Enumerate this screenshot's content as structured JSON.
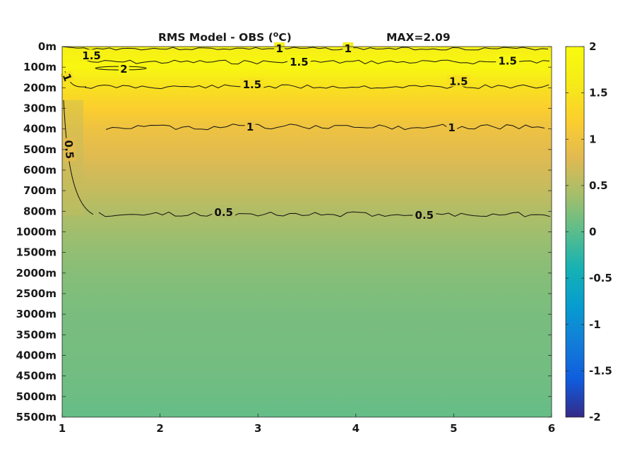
{
  "chart_data": {
    "type": "heatmap",
    "title": "RMS Model - OBS (°C)",
    "title_main": "RMS Model - OBS (",
    "title_sup": "o",
    "title_end": "C)",
    "max_label": "MAX=2.09",
    "x_ticks": [
      "1",
      "2",
      "3",
      "4",
      "5",
      "6"
    ],
    "xlim": [
      1,
      6
    ],
    "y_ticks": [
      "0m",
      "100m",
      "200m",
      "300m",
      "400m",
      "500m",
      "600m",
      "700m",
      "800m",
      "1000m",
      "1500m",
      "2000m",
      "2500m",
      "3000m",
      "3500m",
      "4000m",
      "4500m",
      "5000m",
      "5500m"
    ],
    "y_reversed": true,
    "colorbar": {
      "range": [
        -2,
        2
      ],
      "ticks": [
        "2",
        "1.5",
        "1",
        "0.5",
        "0",
        "-0.5",
        "-1",
        "-1.5",
        "-2"
      ],
      "colormap": "parula"
    },
    "field_profile_by_depth_level": [
      {
        "level": 0,
        "value": 1.7
      },
      {
        "level": 1,
        "value": 1.9
      },
      {
        "level": 2,
        "value": 1.45
      },
      {
        "level": 3,
        "value": 1.2
      },
      {
        "level": 4,
        "value": 0.98
      },
      {
        "level": 5,
        "value": 0.85
      },
      {
        "level": 6,
        "value": 0.72
      },
      {
        "level": 7,
        "value": 0.6
      },
      {
        "level": 8,
        "value": 0.48
      },
      {
        "level": 9,
        "value": 0.38
      },
      {
        "level": 10,
        "value": 0.3
      },
      {
        "level": 11,
        "value": 0.24
      },
      {
        "level": 12,
        "value": 0.2
      },
      {
        "level": 13,
        "value": 0.17
      },
      {
        "level": 14,
        "value": 0.16
      },
      {
        "level": 15,
        "value": 0.15
      },
      {
        "level": 16,
        "value": 0.13
      },
      {
        "level": 17,
        "value": 0.1
      },
      {
        "level": 18,
        "value": 0.06
      }
    ],
    "contour_labels": [
      {
        "text": "1",
        "x": 3.22,
        "level": 0.1
      },
      {
        "text": "1",
        "x": 3.92,
        "level": 0.1
      },
      {
        "text": "1.5",
        "x": 1.3,
        "level": 0.45
      },
      {
        "text": "1.5",
        "x": 3.42,
        "level": 0.75
      },
      {
        "text": "1.5",
        "x": 5.55,
        "level": 0.7
      },
      {
        "text": "2",
        "x": 1.63,
        "level": 1.1
      },
      {
        "text": "1",
        "x": 1.05,
        "level": 1.5
      },
      {
        "text": "1.5",
        "x": 2.94,
        "level": 1.85
      },
      {
        "text": "1.5",
        "x": 5.05,
        "level": 1.7
      },
      {
        "text": "1",
        "x": 2.92,
        "level": 3.9
      },
      {
        "text": "1",
        "x": 4.98,
        "level": 3.95
      },
      {
        "text": "0.5",
        "x": 1.07,
        "level": 5.0
      },
      {
        "text": "0.5",
        "x": 2.65,
        "level": 8.05
      },
      {
        "text": "0.5",
        "x": 4.7,
        "level": 8.2
      }
    ]
  }
}
